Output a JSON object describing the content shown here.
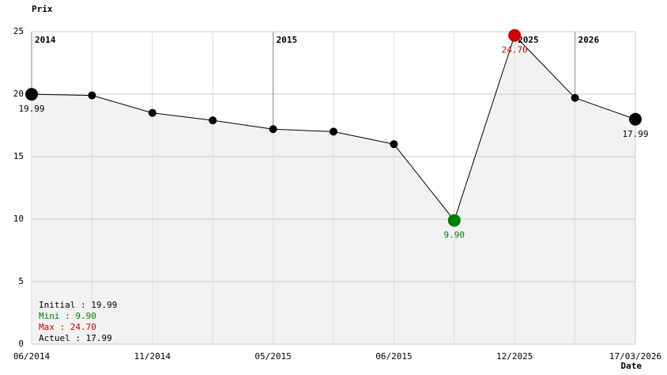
{
  "chart_data": {
    "type": "line",
    "y_label": "Prix",
    "x_label": "Date",
    "categories": [
      "06/2014",
      null,
      "11/2014",
      null,
      "05/2015",
      null,
      "06/2015",
      null,
      "12/2025",
      null,
      "17/03/2026"
    ],
    "year_markers": [
      "2014",
      null,
      null,
      null,
      "2015",
      null,
      null,
      null,
      "2025",
      "2026",
      null
    ],
    "values": [
      19.99,
      19.9,
      18.5,
      17.9,
      17.2,
      17.0,
      16.0,
      9.9,
      24.7,
      19.7,
      17.99
    ],
    "value_labels": [
      "19.99",
      null,
      null,
      null,
      null,
      null,
      null,
      "9.90",
      "24.70",
      null,
      "17.99"
    ],
    "point_colors": [
      "#000000",
      "#000000",
      "#000000",
      "#000000",
      "#000000",
      "#000000",
      "#000000",
      "#008000",
      "#cc0000",
      "#000000",
      "#000000"
    ],
    "color": "#000000",
    "area_color": "#f2f2f2",
    "ylim": [
      0,
      25
    ],
    "yticks": [
      0,
      5,
      10,
      15,
      20,
      25
    ],
    "grid": true,
    "annotations": [
      "Initial : 19.99",
      "Mini : 9.90",
      "Max : 24.70",
      "Actuel : 17.99"
    ],
    "annotation_colors": [
      "#000000",
      "#008000",
      "#cc0000",
      "#000000"
    ]
  }
}
